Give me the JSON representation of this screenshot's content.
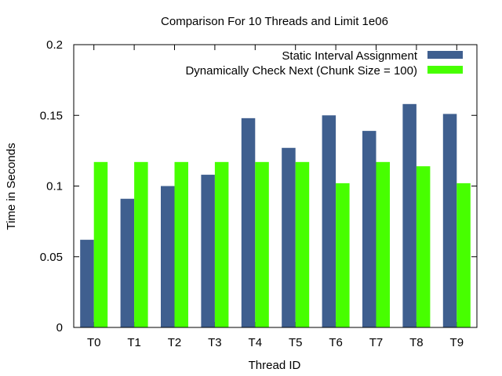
{
  "chart_data": {
    "type": "bar",
    "title": "Comparison For 10 Threads and Limit 1e06",
    "xlabel": "Thread ID",
    "ylabel": "Time in Seconds",
    "ylim": [
      0,
      0.2
    ],
    "yticks": [
      "0",
      "0.05",
      "0.1",
      "0.15",
      "0.2"
    ],
    "ytick_values": [
      0,
      0.05,
      0.1,
      0.15,
      0.2
    ],
    "categories": [
      "T0",
      "T1",
      "T2",
      "T3",
      "T4",
      "T5",
      "T6",
      "T7",
      "T8",
      "T9"
    ],
    "legend_position": "top-right",
    "grid": false,
    "series": [
      {
        "name": "Static Interval Assignment",
        "color": "#3f5f8f",
        "values": [
          0.062,
          0.091,
          0.1,
          0.108,
          0.148,
          0.127,
          0.15,
          0.139,
          0.158,
          0.151
        ]
      },
      {
        "name": "Dynamically Check Next (Chunk Size = 100)",
        "color": "#47ff00",
        "values": [
          0.117,
          0.117,
          0.117,
          0.117,
          0.117,
          0.117,
          0.102,
          0.117,
          0.114,
          0.102
        ]
      }
    ]
  }
}
